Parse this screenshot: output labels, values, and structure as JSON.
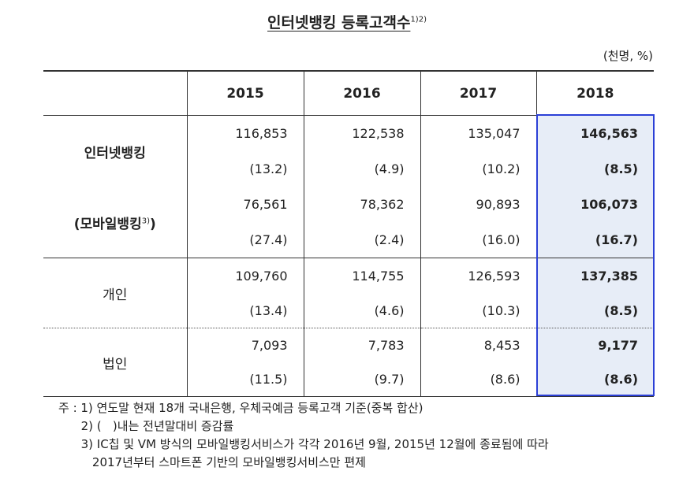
{
  "title": "인터넷뱅킹 등록고객수",
  "title_sup": "1)2)",
  "unit": "(천명, %)",
  "years": [
    "2015",
    "2016",
    "2017",
    "2018"
  ],
  "highlight_color": "#e7edf7",
  "highlight_border": "#2b3fd6",
  "rows": {
    "internet": {
      "label": "인터넷뱅킹",
      "values": [
        "116,853",
        "122,538",
        "135,047",
        "146,563"
      ],
      "rates": [
        "(13.2)",
        "(4.9)",
        "(10.2)",
        "(8.5)"
      ]
    },
    "mobile": {
      "label": "(모바일뱅킹",
      "label_sup": "3)",
      "label_close": ")",
      "values": [
        "76,561",
        "78,362",
        "90,893",
        "106,073"
      ],
      "rates": [
        "(27.4)",
        "(2.4)",
        "(16.0)",
        "(16.7)"
      ]
    },
    "personal": {
      "label": "개인",
      "values": [
        "109,760",
        "114,755",
        "126,593",
        "137,385"
      ],
      "rates": [
        "(13.4)",
        "(4.6)",
        "(10.3)",
        "(8.5)"
      ]
    },
    "corporate": {
      "label": "법인",
      "values": [
        "7,093",
        "7,783",
        "8,453",
        "9,177"
      ],
      "rates": [
        "(11.5)",
        "(9.7)",
        "(8.6)",
        "(8.6)"
      ]
    }
  },
  "notes": [
    "주 : 1) 연도말 현재 18개 국내은행, 우체국예금 등록고객 기준(중복 합산)",
    "      2) (   )내는 전년말대비 증감률",
    "      3) IC칩 및 VM 방식의 모바일뱅킹서비스가 각각 2016년 9월, 2015년 12월에 종료됨에 따라",
    "         2017년부터 스마트폰 기반의 모바일뱅킹서비스만 편제"
  ]
}
